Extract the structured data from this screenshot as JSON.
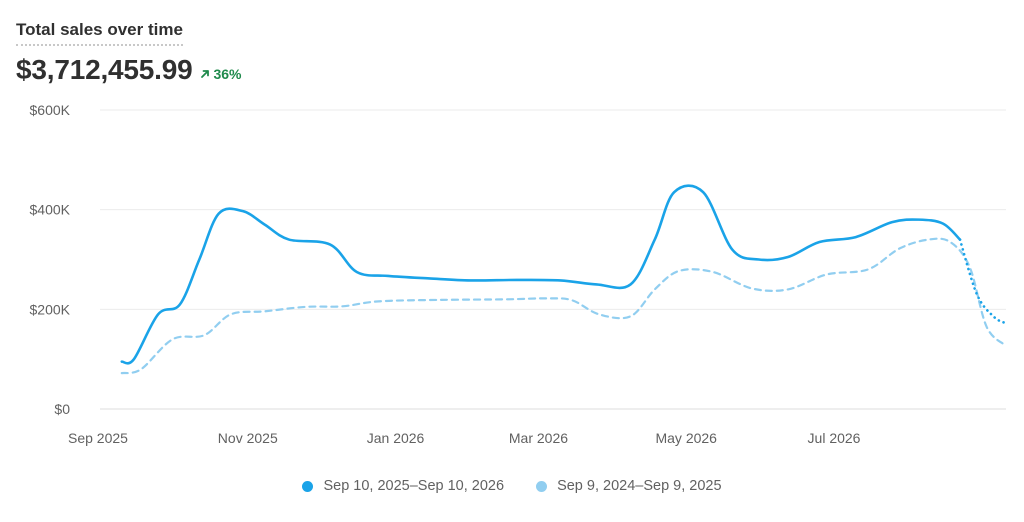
{
  "header": {
    "title": "Total sales over time",
    "total": "$3,712,455.99",
    "change": "36%",
    "change_color": "#1f8a4c"
  },
  "chart_data": {
    "type": "line",
    "ylim": [
      0,
      600000
    ],
    "y_ticks": [
      0,
      200000,
      400000,
      600000
    ],
    "y_tick_labels": [
      "$0",
      "$200K",
      "$400K",
      "$600K"
    ],
    "x_range": [
      "2025-09-10",
      "2026-09-10"
    ],
    "x_ticks": [
      "2025-09-01",
      "2025-11-01",
      "2026-01-01",
      "2026-03-01",
      "2026-05-01",
      "2026-07-01"
    ],
    "x_tick_labels": [
      "Sep 2025",
      "Nov 2025",
      "Jan 2026",
      "Mar 2026",
      "May 2026",
      "Jul 2026"
    ],
    "grid": true,
    "legend_position": "bottom-center",
    "series": [
      {
        "name": "Sep 10, 2025–Sep 10, 2026",
        "color": "#1aa3e8",
        "dash": "solid",
        "incomplete_from": "2026-08-22",
        "points": [
          [
            "2025-09-10",
            95000
          ],
          [
            "2025-09-15",
            100000
          ],
          [
            "2025-09-25",
            190000
          ],
          [
            "2025-10-04",
            210000
          ],
          [
            "2025-10-12",
            300000
          ],
          [
            "2025-10-20",
            392000
          ],
          [
            "2025-10-30",
            397000
          ],
          [
            "2025-11-08",
            370000
          ],
          [
            "2025-11-18",
            340000
          ],
          [
            "2025-12-05",
            330000
          ],
          [
            "2025-12-16",
            275000
          ],
          [
            "2025-12-29",
            267000
          ],
          [
            "2026-01-15",
            262000
          ],
          [
            "2026-02-01",
            258000
          ],
          [
            "2026-02-20",
            259000
          ],
          [
            "2026-03-10",
            258000
          ],
          [
            "2026-03-25",
            250000
          ],
          [
            "2026-04-08",
            250000
          ],
          [
            "2026-04-18",
            340000
          ],
          [
            "2026-04-26",
            435000
          ],
          [
            "2026-05-08",
            435000
          ],
          [
            "2026-05-20",
            320000
          ],
          [
            "2026-05-31",
            300000
          ],
          [
            "2026-06-12",
            305000
          ],
          [
            "2026-06-25",
            335000
          ],
          [
            "2026-07-10",
            345000
          ],
          [
            "2026-07-25",
            375000
          ],
          [
            "2026-08-05",
            380000
          ],
          [
            "2026-08-15",
            372000
          ],
          [
            "2026-08-22",
            340000
          ],
          [
            "2026-08-29",
            230000
          ],
          [
            "2026-09-05",
            185000
          ],
          [
            "2026-09-10",
            172000
          ]
        ]
      },
      {
        "name": "Sep 9, 2024–Sep 9, 2025",
        "color": "#91cef0",
        "dash": "dashed",
        "points": [
          [
            "2025-09-10",
            72000
          ],
          [
            "2025-09-18",
            80000
          ],
          [
            "2025-10-01",
            140000
          ],
          [
            "2025-10-14",
            148000
          ],
          [
            "2025-10-25",
            190000
          ],
          [
            "2025-11-08",
            196000
          ],
          [
            "2025-11-25",
            205000
          ],
          [
            "2025-12-10",
            206000
          ],
          [
            "2025-12-25",
            216000
          ],
          [
            "2026-01-20",
            219000
          ],
          [
            "2026-02-15",
            220000
          ],
          [
            "2026-03-05",
            222000
          ],
          [
            "2026-03-15",
            218000
          ],
          [
            "2026-03-26",
            190000
          ],
          [
            "2026-04-08",
            186000
          ],
          [
            "2026-04-18",
            240000
          ],
          [
            "2026-04-28",
            277000
          ],
          [
            "2026-05-12",
            275000
          ],
          [
            "2026-05-28",
            242000
          ],
          [
            "2026-06-12",
            240000
          ],
          [
            "2026-06-28",
            270000
          ],
          [
            "2026-07-15",
            280000
          ],
          [
            "2026-07-28",
            322000
          ],
          [
            "2026-08-09",
            340000
          ],
          [
            "2026-08-18",
            335000
          ],
          [
            "2026-08-26",
            285000
          ],
          [
            "2026-09-02",
            165000
          ],
          [
            "2026-09-10",
            127000
          ]
        ]
      }
    ]
  },
  "legend": {
    "current_label": "Sep 10, 2025–Sep 10, 2026",
    "previous_label": "Sep 9, 2024–Sep 9, 2025"
  }
}
